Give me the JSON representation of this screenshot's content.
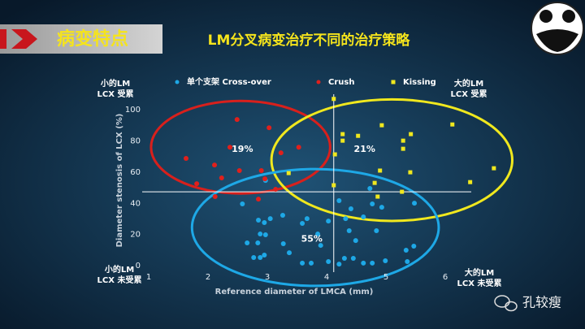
{
  "header": {
    "title": "病变特点"
  },
  "watermark": "孔较瘦",
  "chart_data": {
    "type": "scatter",
    "title": "LM分叉病变治疗不同的治疗策略",
    "x_label": "Reference diameter of LMCA (mm)",
    "y_label": "Diameter stenosis of LCX (%)",
    "xlim": [
      1,
      7
    ],
    "ylim": [
      0,
      110
    ],
    "xticks": [
      1,
      2,
      3,
      4,
      5,
      6
    ],
    "yticks": [
      0,
      20,
      40,
      60,
      80,
      100
    ],
    "grid": false,
    "reference_lines": {
      "x": 4.12,
      "y": 47.4
    },
    "series": [
      {
        "name": "单个支架 Cross-over",
        "color": "#1ea8e6",
        "marker": "circle",
        "x": [
          2.97,
          2.58,
          4.21,
          4.41,
          4.77,
          4.93,
          4.73,
          5.48,
          3.26,
          3.05,
          2.85,
          2.95,
          3.59,
          3.67,
          4.03,
          4.32,
          4.62,
          4.38,
          4.49,
          4.84,
          2.88,
          2.97,
          3.85,
          2.66,
          2.84,
          3.27,
          3.9,
          3.37,
          2.77,
          2.88,
          2.95,
          3.59,
          3.74,
          4.03,
          4.21,
          4.3,
          4.45,
          4.62,
          4.77,
          4.99,
          5.34,
          5.47,
          5.36
        ],
        "values": [
          54.7,
          39.6,
          41.7,
          36.5,
          39.6,
          37.5,
          49.5,
          40.1,
          32.3,
          30.2,
          29.2,
          27.6,
          27.1,
          30.2,
          28.6,
          30.2,
          31.3,
          22.4,
          16.1,
          22.4,
          20.3,
          19.8,
          20.3,
          14.6,
          14.6,
          14.1,
          13,
          8.3,
          5.2,
          5.2,
          6.8,
          1.6,
          1.6,
          2.6,
          1,
          4.7,
          4.7,
          1.6,
          1.6,
          3.1,
          9.9,
          12.5,
          2.6
        ]
      },
      {
        "name": "Crush",
        "color": "#e0201c",
        "marker": "circle",
        "x": [
          2.49,
          3.03,
          2.37,
          1.63,
          3.23,
          3.53,
          2.11,
          2.23,
          2.53,
          2.9,
          1.81,
          2.96,
          3.14,
          2.12,
          2.85
        ],
        "values": [
          93.8,
          88.5,
          76,
          68.8,
          72.4,
          76,
          64.6,
          56.3,
          61,
          61,
          52.6,
          55.7,
          49,
          44.3,
          42.7
        ]
      },
      {
        "name": "Kissing",
        "color": "#f0e81e",
        "marker": "square",
        "x": [
          4.12,
          4.27,
          4.27,
          4.53,
          4.93,
          4.14,
          5.29,
          5.42,
          5.29,
          6.12,
          4.9,
          5.41,
          3.36,
          4.81,
          4.12,
          6.42,
          6.82,
          5.27,
          4.86
        ],
        "values": [
          107,
          84.4,
          80.2,
          83.3,
          90.1,
          71.4,
          80.2,
          84.4,
          75,
          90.6,
          61,
          59.9,
          59.4,
          53.1,
          51.6,
          53.6,
          62.5,
          47.4,
          44.3
        ]
      }
    ],
    "annotations": [
      {
        "label": "19%",
        "x": 2.58,
        "y": 74.5,
        "color": "#d8201c",
        "ellipse": {
          "cx": 2.55,
          "cy": 76,
          "rx": 1.51,
          "ry": 29.7
        }
      },
      {
        "label": "21%",
        "x": 4.64,
        "y": 74.5,
        "color": "#f0e81e",
        "ellipse": {
          "cx": 5.1,
          "cy": 67.7,
          "rx": 2.03,
          "ry": 39
        }
      },
      {
        "label": "55%",
        "x": 3.75,
        "y": 17,
        "color": "#1ea8e6",
        "ellipse": {
          "cx": 3.81,
          "cy": 24.5,
          "rx": 2.08,
          "ry": 37.5
        }
      }
    ],
    "corner_labels": [
      {
        "position": "top-left",
        "lines": [
          "小的LM",
          "LCX 受累"
        ]
      },
      {
        "position": "top-right",
        "lines": [
          "大的LM",
          "LCX 受累"
        ]
      },
      {
        "position": "bottom-left",
        "lines": [
          "小的LM",
          "LCX 未受累"
        ]
      },
      {
        "position": "bottom-right",
        "lines": [
          "大的LM",
          "LCX 未受累"
        ]
      }
    ]
  }
}
